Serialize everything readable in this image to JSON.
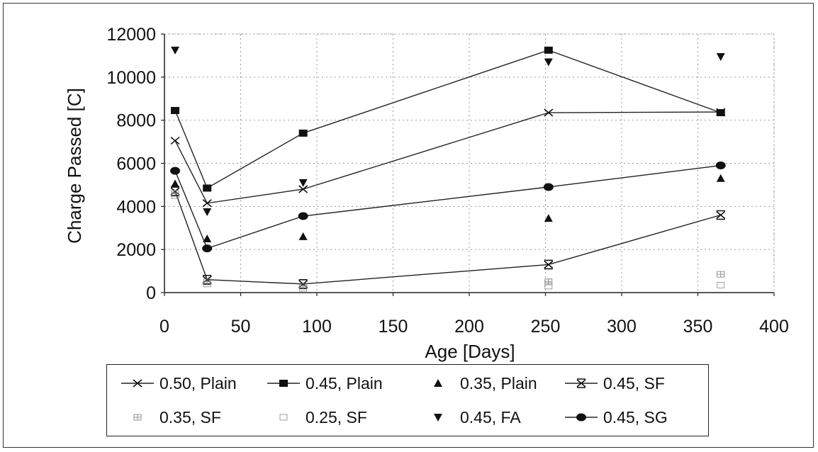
{
  "chart_data": {
    "type": "scatter",
    "title": "",
    "xlabel": "Age [Days]",
    "ylabel": "Charge Passed [C]",
    "xlim": [
      0,
      400
    ],
    "ylim": [
      0,
      12000
    ],
    "x_ticks": [
      "0",
      "50",
      "100",
      "150",
      "200",
      "250",
      "300",
      "350",
      "400"
    ],
    "y_ticks": [
      "0",
      "2000",
      "4000",
      "6000",
      "8000",
      "10000",
      "12000"
    ],
    "grid": "dotted",
    "legend_position": "bottom",
    "series": [
      {
        "name": "0.50, Plain",
        "marker": "x",
        "line": true,
        "x": [
          7,
          28,
          91,
          252,
          365
        ],
        "y": [
          7050,
          4150,
          4800,
          8350,
          8380
        ]
      },
      {
        "name": "0.45, Plain",
        "marker": "square",
        "line": true,
        "x": [
          7,
          28,
          91,
          252,
          365
        ],
        "y": [
          8450,
          4850,
          7400,
          11250,
          8350
        ]
      },
      {
        "name": "0.35, Plain",
        "marker": "triangle-up",
        "line": false,
        "x": [
          7,
          28,
          91,
          252,
          365
        ],
        "y": [
          5050,
          2500,
          2600,
          3450,
          5300
        ]
      },
      {
        "name": "0.45, SF",
        "marker": "asterisk",
        "line": true,
        "x": [
          7,
          28,
          91,
          252,
          365
        ],
        "y": [
          4700,
          600,
          400,
          1300,
          3600
        ]
      },
      {
        "name": "0.35, SF",
        "marker": "square-plus",
        "line": false,
        "x": [
          7,
          28,
          91,
          252,
          365
        ],
        "y": [
          4600,
          500,
          300,
          500,
          850
        ]
      },
      {
        "name": "0.25, SF",
        "marker": "square-open",
        "line": false,
        "x": [
          7,
          28,
          91,
          252,
          365
        ],
        "y": [
          4500,
          400,
          200,
          300,
          350
        ]
      },
      {
        "name": "0.45, FA",
        "marker": "triangle-down",
        "line": false,
        "x": [
          7,
          28,
          91,
          252,
          365
        ],
        "y": [
          11250,
          3750,
          5100,
          10700,
          10950
        ]
      },
      {
        "name": "0.45, SG",
        "marker": "circle",
        "line": true,
        "x": [
          7,
          28,
          91,
          252,
          365
        ],
        "y": [
          5650,
          2050,
          3550,
          4900,
          5900
        ]
      }
    ]
  }
}
